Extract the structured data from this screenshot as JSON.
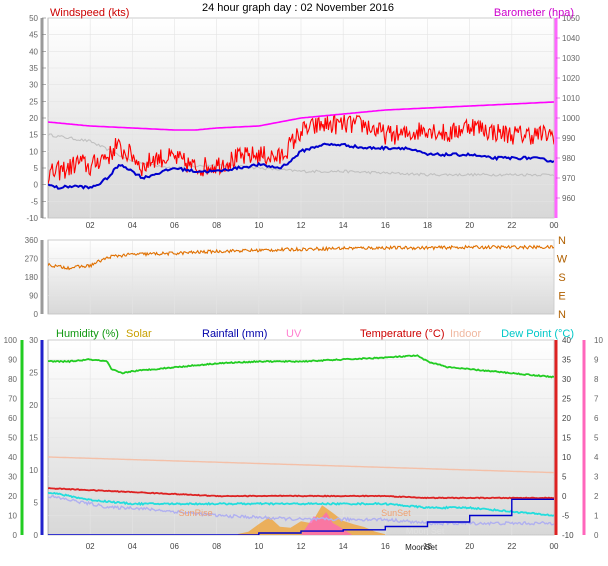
{
  "title": "24 hour graph day : 02 November 2016",
  "chart_data": [
    {
      "type": "line",
      "labels": {
        "left": "Windspeed (kts)",
        "right": "Barometer (hpa)"
      },
      "x": {
        "min": 0,
        "max": 24,
        "ticks": [
          "02",
          "04",
          "06",
          "08",
          "10",
          "12",
          "14",
          "16",
          "18",
          "20",
          "22",
          "00"
        ]
      },
      "left_axis": {
        "min": -10,
        "max": 50,
        "ticks": [
          "-10",
          "-5",
          "0",
          "5",
          "10",
          "15",
          "20",
          "25",
          "30",
          "35",
          "40",
          "45",
          "50"
        ]
      },
      "right_axis": {
        "min": 950,
        "max": 1050,
        "ticks": [
          "960",
          "970",
          "980",
          "990",
          "1000",
          "1010",
          "1020",
          "1030",
          "1040",
          "1050"
        ]
      },
      "series": [
        {
          "key": "gust",
          "color": "#ff0000",
          "axis": "left",
          "noise": 3.0,
          "x": [
            0,
            0.5,
            1,
            1.5,
            2,
            2.5,
            3,
            3.2,
            3.5,
            4,
            4.5,
            5,
            6,
            7,
            8,
            9,
            10,
            11,
            11.5,
            12,
            12.5,
            13,
            14,
            15,
            16,
            17,
            18,
            19,
            20,
            21,
            22,
            23,
            24
          ],
          "y": [
            3,
            4,
            5,
            7,
            5,
            8,
            9,
            12,
            10,
            9,
            5,
            8,
            8,
            5,
            6,
            8,
            9,
            8,
            12,
            16,
            17,
            18,
            18,
            18,
            15,
            15,
            17,
            15,
            18,
            16,
            15,
            15,
            15
          ]
        },
        {
          "key": "average",
          "color": "#0000cc",
          "axis": "left",
          "noise": 0.4,
          "x": [
            0,
            0.5,
            1,
            1.5,
            2,
            2.5,
            3,
            3.2,
            3.5,
            4,
            4.5,
            5,
            6,
            7,
            8,
            9,
            10,
            11,
            11.5,
            12,
            12.5,
            13,
            14,
            15,
            16,
            17,
            18,
            19,
            20,
            21,
            22,
            23,
            24
          ],
          "y": [
            0,
            -1,
            -0.5,
            -0.5,
            -1,
            0.5,
            3,
            5,
            6,
            4,
            2,
            3,
            5,
            4,
            4,
            5,
            6,
            5,
            7,
            10,
            11,
            12,
            12,
            11,
            11,
            11,
            9,
            9,
            9,
            8,
            8,
            8,
            7
          ]
        },
        {
          "key": "grey",
          "color": "#c0c0c0",
          "axis": "left",
          "noise": 0.4,
          "x": [
            0,
            1,
            2,
            3,
            4,
            5,
            6,
            8,
            10,
            12,
            14,
            16,
            18,
            20,
            22,
            24
          ],
          "y": [
            15,
            14,
            13,
            10,
            7,
            6,
            5,
            6,
            5,
            4,
            4,
            3.5,
            3,
            3,
            3,
            3
          ]
        },
        {
          "key": "barometer",
          "color": "#ff00ff",
          "axis": "right",
          "noise": 0,
          "x": [
            0,
            1,
            2,
            4,
            6,
            7,
            8,
            10,
            12,
            14,
            16,
            18,
            20,
            22,
            24
          ],
          "y": [
            998,
            997,
            996,
            995,
            994,
            994,
            995,
            996,
            1000,
            1002,
            1004,
            1005,
            1006,
            1007,
            1008
          ]
        }
      ]
    },
    {
      "type": "line",
      "labels": {
        "left": "",
        "right": ""
      },
      "x": {
        "min": 0,
        "max": 24,
        "ticks": []
      },
      "left_axis": {
        "min": 0,
        "max": 360,
        "ticks": [
          "0",
          "90",
          "180",
          "270",
          "360"
        ]
      },
      "compass": [
        "N",
        "W",
        "S",
        "E",
        "N"
      ],
      "series": [
        {
          "key": "direction",
          "color": "#e07000",
          "axis": "left",
          "noise": 8,
          "x": [
            0,
            0.5,
            1,
            1.5,
            2,
            2.5,
            3,
            4,
            6,
            8,
            10,
            12,
            14,
            16,
            18,
            20,
            22,
            24
          ],
          "y": [
            240,
            230,
            225,
            230,
            235,
            260,
            280,
            290,
            295,
            305,
            310,
            315,
            320,
            322,
            322,
            325,
            325,
            325
          ]
        }
      ]
    },
    {
      "type": "line",
      "labels": {
        "humidity": "Humidity (%)",
        "solar": "Solar",
        "rainfall": "Rainfall (mm)",
        "uv": "UV",
        "temperature": "Temperature (°C)",
        "indoor": "Indoor",
        "dewpoint": "Dew Point (°C)",
        "sunrise": "SunRise",
        "sunset": "SunSet",
        "moonset": "MoonSet",
        "moonset2": "Moon Set"
      },
      "x": {
        "min": 0,
        "max": 24,
        "ticks": [
          "02",
          "04",
          "06",
          "08",
          "10",
          "12",
          "14",
          "16",
          "18",
          "20",
          "22",
          "00"
        ]
      },
      "humidity_axis": {
        "min": 0,
        "max": 100,
        "ticks": [
          "0",
          "10",
          "20",
          "30",
          "40",
          "50",
          "60",
          "70",
          "80",
          "90",
          "100"
        ]
      },
      "rain_axis": {
        "min": 0,
        "max": 30,
        "ticks": [
          "0",
          "5",
          "10",
          "15",
          "20",
          "25",
          "30"
        ]
      },
      "temp_axis": {
        "min": -10,
        "max": 40,
        "ticks": [
          "-10",
          "-5",
          "0",
          "5",
          "10",
          "15",
          "20",
          "25",
          "30",
          "35",
          "40"
        ]
      },
      "uv_axis": {
        "min": 0,
        "max": 10,
        "ticks": [
          "0",
          "1",
          "2",
          "3",
          "4",
          "5",
          "6",
          "7",
          "8",
          "9",
          "10"
        ]
      },
      "series": [
        {
          "key": "humidity",
          "color": "#22cc22",
          "axis": "humidity",
          "noise": 0.3,
          "x": [
            0,
            1,
            2,
            2.8,
            3,
            3.5,
            4,
            5,
            6,
            8,
            10,
            12,
            14,
            16,
            17.5,
            18,
            19,
            20,
            22,
            24
          ],
          "y": [
            89,
            89,
            90,
            89,
            85,
            83,
            84,
            85,
            86,
            88,
            89,
            89,
            90,
            91,
            92,
            89,
            86,
            85,
            83,
            81
          ]
        },
        {
          "key": "indoor",
          "color": "#f4c0a8",
          "axis": "temp",
          "noise": 0,
          "x": [
            0,
            24
          ],
          "y": [
            10,
            6
          ]
        },
        {
          "key": "temperature",
          "color": "#dd2222",
          "axis": "temp",
          "noise": 0.1,
          "x": [
            0,
            2,
            4,
            6,
            8,
            12,
            16,
            18,
            20,
            22,
            24
          ],
          "y": [
            2,
            1.5,
            1,
            0.5,
            0,
            0,
            0,
            -0.5,
            -0.5,
            -0.5,
            -0.5
          ]
        },
        {
          "key": "dewpoint",
          "color": "#22dddd",
          "axis": "temp",
          "noise": 0.2,
          "x": [
            0,
            1,
            2,
            4,
            6,
            8,
            12,
            16,
            18,
            20,
            22,
            24
          ],
          "y": [
            1,
            0,
            -1,
            -2,
            -2,
            -2,
            -2,
            -2,
            -3,
            -3,
            -4,
            -5
          ]
        },
        {
          "key": "windchill",
          "color": "#b0b0f0",
          "axis": "temp",
          "noise": 0.4,
          "x": [
            0,
            1,
            2,
            3,
            4,
            6,
            8,
            12,
            16,
            18,
            20,
            24
          ],
          "y": [
            0,
            -1,
            -2,
            -3,
            -3,
            -4,
            -5,
            -6,
            -6,
            -7,
            -7,
            -7
          ]
        },
        {
          "key": "rainfall",
          "color": "#0000cc",
          "axis": "rain",
          "noise": 0,
          "step": true,
          "x": [
            0,
            8,
            10,
            12,
            14,
            16,
            18,
            20,
            22,
            24
          ],
          "y": [
            0,
            0,
            0.3,
            0.6,
            0.8,
            1.3,
            2,
            3,
            5.5,
            5.5
          ]
        }
      ],
      "solar": {
        "color": "#f0a030",
        "axis": "uv",
        "x": [
          9,
          9.5,
          10,
          10.5,
          11,
          11.5,
          12,
          12.5,
          13,
          13.5,
          14,
          14.5,
          15,
          15.5,
          16
        ],
        "y": [
          0,
          0.2,
          0.6,
          0.9,
          0.4,
          0.3,
          0.8,
          0.6,
          1.5,
          1.2,
          0.8,
          0.5,
          0.4,
          0.2,
          0
        ]
      },
      "uv": {
        "color": "#ff60c0",
        "axis": "uv",
        "x": [
          12,
          12.3,
          12.6,
          12.9,
          13.2,
          13.5,
          13.8,
          14.1,
          14.4
        ],
        "y": [
          0,
          0.5,
          1,
          0.8,
          1.1,
          0.7,
          0.5,
          0.3,
          0
        ]
      },
      "events": {
        "sunrise_x": 7,
        "sunset_x": 16.5,
        "moonset_x": 17.7
      }
    }
  ]
}
